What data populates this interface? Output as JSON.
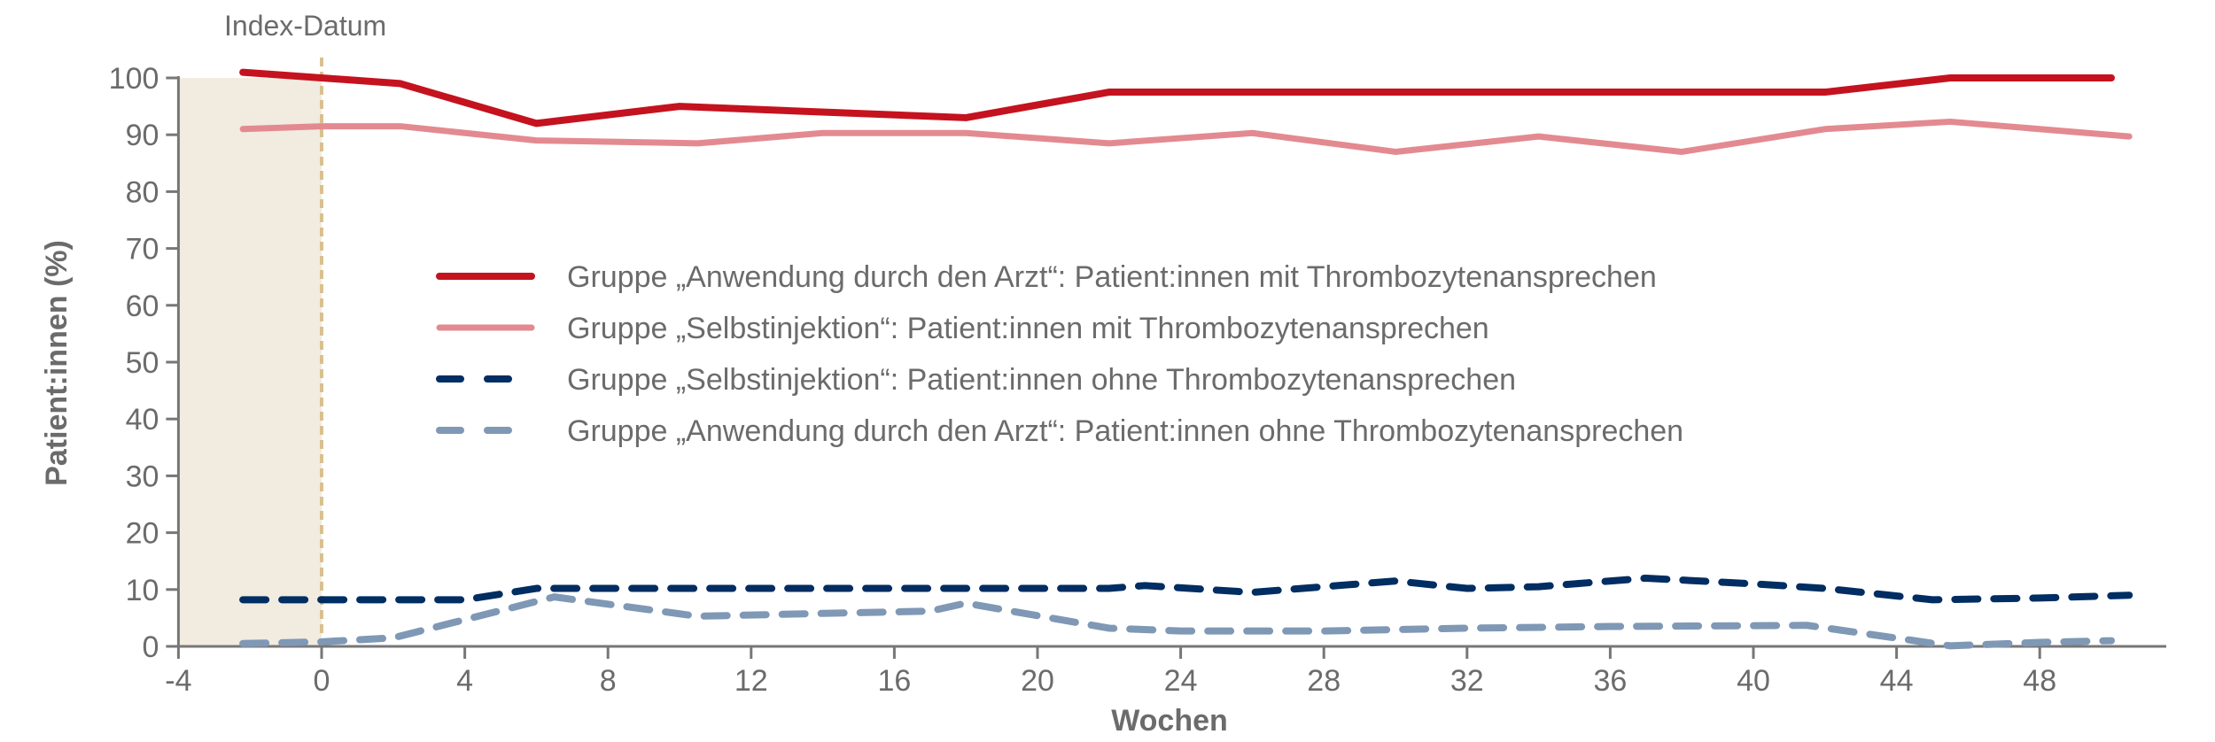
{
  "chart_data": {
    "type": "line",
    "title": "",
    "xlabel": "Wochen",
    "ylabel": "Patient:innen (%)",
    "xlim": [
      -4,
      52
    ],
    "ylim": [
      0,
      100
    ],
    "xticks": [
      -4,
      0,
      4,
      8,
      12,
      16,
      20,
      24,
      28,
      32,
      36,
      40,
      44,
      48
    ],
    "yticks": [
      0,
      10,
      20,
      30,
      40,
      50,
      60,
      70,
      80,
      90,
      100
    ],
    "grid": false,
    "legend_position": "center",
    "annotation": {
      "label": "Index-Datum",
      "x": 0,
      "shaded_range": [
        -4,
        0
      ],
      "shade_color": "#f1ebe0",
      "line_color": "#d9c08f"
    },
    "series": [
      {
        "name": "Gruppe „Anwendung durch den Arzt“: Patient:innen mit Thrombozytenansprechen",
        "color": "#c5121f",
        "style": "solid",
        "x": [
          -2.2,
          0,
          2.2,
          6,
          10,
          18,
          22,
          42,
          45.5,
          50
        ],
        "y": [
          101,
          100,
          99,
          92,
          95,
          93,
          97.5,
          97.5,
          100,
          100
        ]
      },
      {
        "name": "Gruppe „Selbstinjektion“: Patient:innen mit Thrombozytenansprechen",
        "color": "#e38a90",
        "style": "solid",
        "x": [
          -2.2,
          0,
          2.2,
          6,
          10.5,
          14,
          18,
          22,
          26,
          30,
          34,
          38,
          42,
          45.5,
          50.5
        ],
        "y": [
          91,
          91.5,
          91.5,
          89,
          88.5,
          90.3,
          90.3,
          88.5,
          90.3,
          87,
          89.7,
          87,
          91,
          92.3,
          89.7
        ]
      },
      {
        "name": "Gruppe „Selbstinjektion“: Patient:innen ohne Thrombozytenansprechen",
        "color": "#002d62",
        "style": "dashed",
        "x": [
          -2.2,
          0,
          4,
          6,
          22,
          23,
          26,
          30,
          32,
          34,
          37,
          40,
          42,
          45,
          48,
          50.5
        ],
        "y": [
          8.2,
          8.2,
          8.2,
          10.2,
          10.2,
          10.7,
          9.5,
          11.5,
          10.2,
          10.5,
          12,
          11,
          10.2,
          8.2,
          8.5,
          9
        ]
      },
      {
        "name": "Gruppe „Anwendung durch den Arzt“: Patient:innen ohne Thrombozytenansprechen",
        "color": "#7f98b5",
        "style": "dashed",
        "x": [
          -2.2,
          0,
          2,
          6.5,
          10.5,
          14,
          17,
          18,
          22,
          24,
          28,
          32,
          36,
          41.5,
          45.5,
          48,
          50
        ],
        "y": [
          0.5,
          0.8,
          1.5,
          8.7,
          5.3,
          5.8,
          6.2,
          7.6,
          3.2,
          2.7,
          2.7,
          3.2,
          3.5,
          3.7,
          0.1,
          0.7,
          1
        ]
      }
    ]
  }
}
